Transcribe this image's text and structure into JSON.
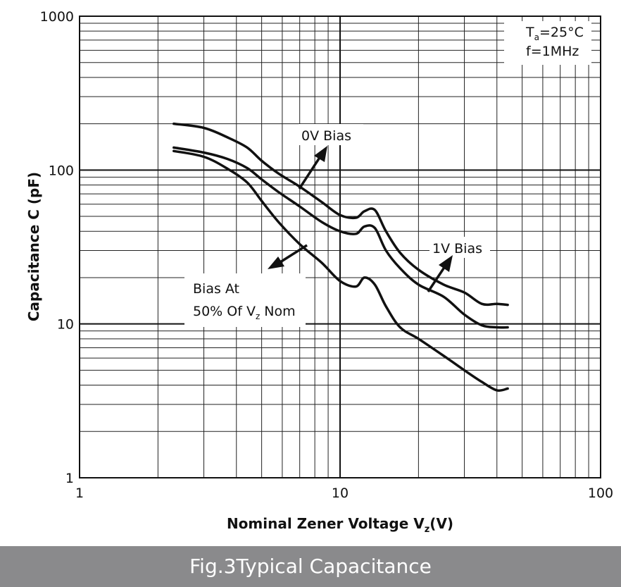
{
  "chart_data": {
    "type": "line",
    "x_scale": "log",
    "y_scale": "log",
    "xlim": [
      1,
      100
    ],
    "ylim": [
      1,
      1000
    ],
    "grid": true,
    "xlabel": "Nominal Zener Voltage  V",
    "xlabel_sub": "z",
    "xlabel_tail": "(V)",
    "ylabel": "Capacitance  C (pF)",
    "x_ticks": [
      {
        "value": 1,
        "label": "1"
      },
      {
        "value": 10,
        "label": "10"
      },
      {
        "value": 100,
        "label": "100"
      }
    ],
    "y_ticks": [
      {
        "value": 1,
        "label": "1"
      },
      {
        "value": 10,
        "label": "10"
      },
      {
        "value": 100,
        "label": "100"
      },
      {
        "value": 1000,
        "label": "1000"
      }
    ],
    "series": [
      {
        "name": "0V Bias",
        "x": [
          2.3,
          3.0,
          3.7,
          4.4,
          5.0,
          5.8,
          7.0,
          8.5,
          10.0,
          11.5,
          12.4,
          13.6,
          15.0,
          17.0,
          20.0,
          25.0,
          30.0,
          35.0,
          40.0,
          44.0
        ],
        "y": [
          200,
          188,
          163,
          140,
          115,
          95,
          78,
          62,
          51,
          49,
          54,
          55,
          40,
          29,
          22.5,
          18,
          16,
          13.5,
          13.5,
          13.3
        ]
      },
      {
        "name": "1V Bias",
        "x": [
          2.3,
          3.0,
          3.7,
          4.4,
          5.0,
          5.8,
          7.0,
          8.5,
          10.0,
          11.5,
          12.4,
          13.6,
          15.0,
          17.0,
          20.0,
          25.0,
          30.0,
          35.0,
          40.0,
          44.0
        ],
        "y": [
          140,
          130,
          118,
          103,
          87,
          72,
          58,
          46,
          40,
          38.5,
          43,
          42,
          30,
          23,
          18,
          15,
          11.5,
          9.8,
          9.5,
          9.5
        ]
      },
      {
        "name": "Bias At 50% Of Vz Nom",
        "x": [
          2.3,
          3.0,
          3.7,
          4.4,
          5.0,
          5.8,
          7.0,
          8.5,
          10.0,
          11.5,
          12.4,
          13.6,
          15.0,
          17.0,
          20.0,
          25.0,
          30.0,
          35.0,
          40.0,
          44.0
        ],
        "y": [
          133,
          122,
          102,
          83,
          63,
          46,
          33,
          25,
          19,
          17.5,
          20,
          18,
          13,
          9.5,
          8,
          6.2,
          5,
          4.2,
          3.7,
          3.8
        ]
      }
    ],
    "annotations": {
      "conditions_line1_main": "T",
      "conditions_line1_sub": "a",
      "conditions_line1_tail": "=25°C",
      "conditions_line2": "f=1MHz",
      "label_0v": "0V Bias",
      "label_1v": "1V Bias",
      "label_half_line1": "Bias At",
      "label_half_line2_main": "50% Of V",
      "label_half_line2_sub": "z",
      "label_half_line2_tail": " Nom"
    }
  },
  "caption": "Fig.3Typical Capacitance"
}
